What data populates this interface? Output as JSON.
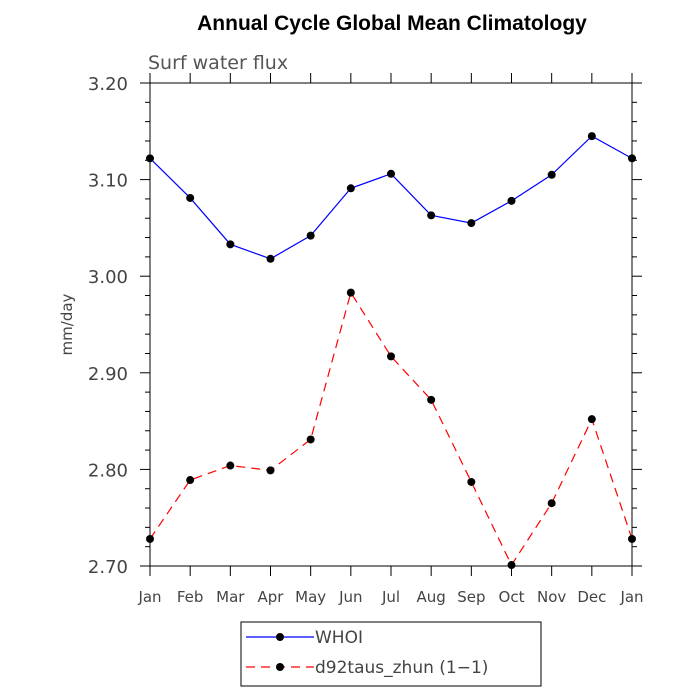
{
  "chart_data": {
    "type": "line",
    "title": "Annual Cycle Global Mean Climatology",
    "subtitle": "Surf water flux",
    "xlabel": "",
    "ylabel": "mm/day",
    "categories": [
      "Jan",
      "Feb",
      "Mar",
      "Apr",
      "May",
      "Jun",
      "Jul",
      "Aug",
      "Sep",
      "Oct",
      "Nov",
      "Dec",
      "Jan"
    ],
    "ylim": [
      2.7,
      3.2
    ],
    "yticks": [
      "2.70",
      "2.80",
      "2.90",
      "3.00",
      "3.10",
      "3.20"
    ],
    "ytick_values": [
      2.7,
      2.8,
      2.9,
      3.0,
      3.1,
      3.2
    ],
    "grid": false,
    "legend_position": "bottom-center",
    "series": [
      {
        "name": "WHOI",
        "color": "#0000ff",
        "dash": "solid",
        "values": [
          3.122,
          3.081,
          3.033,
          3.018,
          3.042,
          3.091,
          3.106,
          3.063,
          3.055,
          3.078,
          3.105,
          3.145,
          3.122
        ]
      },
      {
        "name": "d92taus_zhun (1−1)",
        "color": "#ff0000",
        "dash": "dashed",
        "values": [
          2.728,
          2.789,
          2.804,
          2.799,
          2.831,
          2.983,
          2.917,
          2.872,
          2.787,
          2.701,
          2.765,
          2.852,
          2.728
        ]
      }
    ]
  }
}
